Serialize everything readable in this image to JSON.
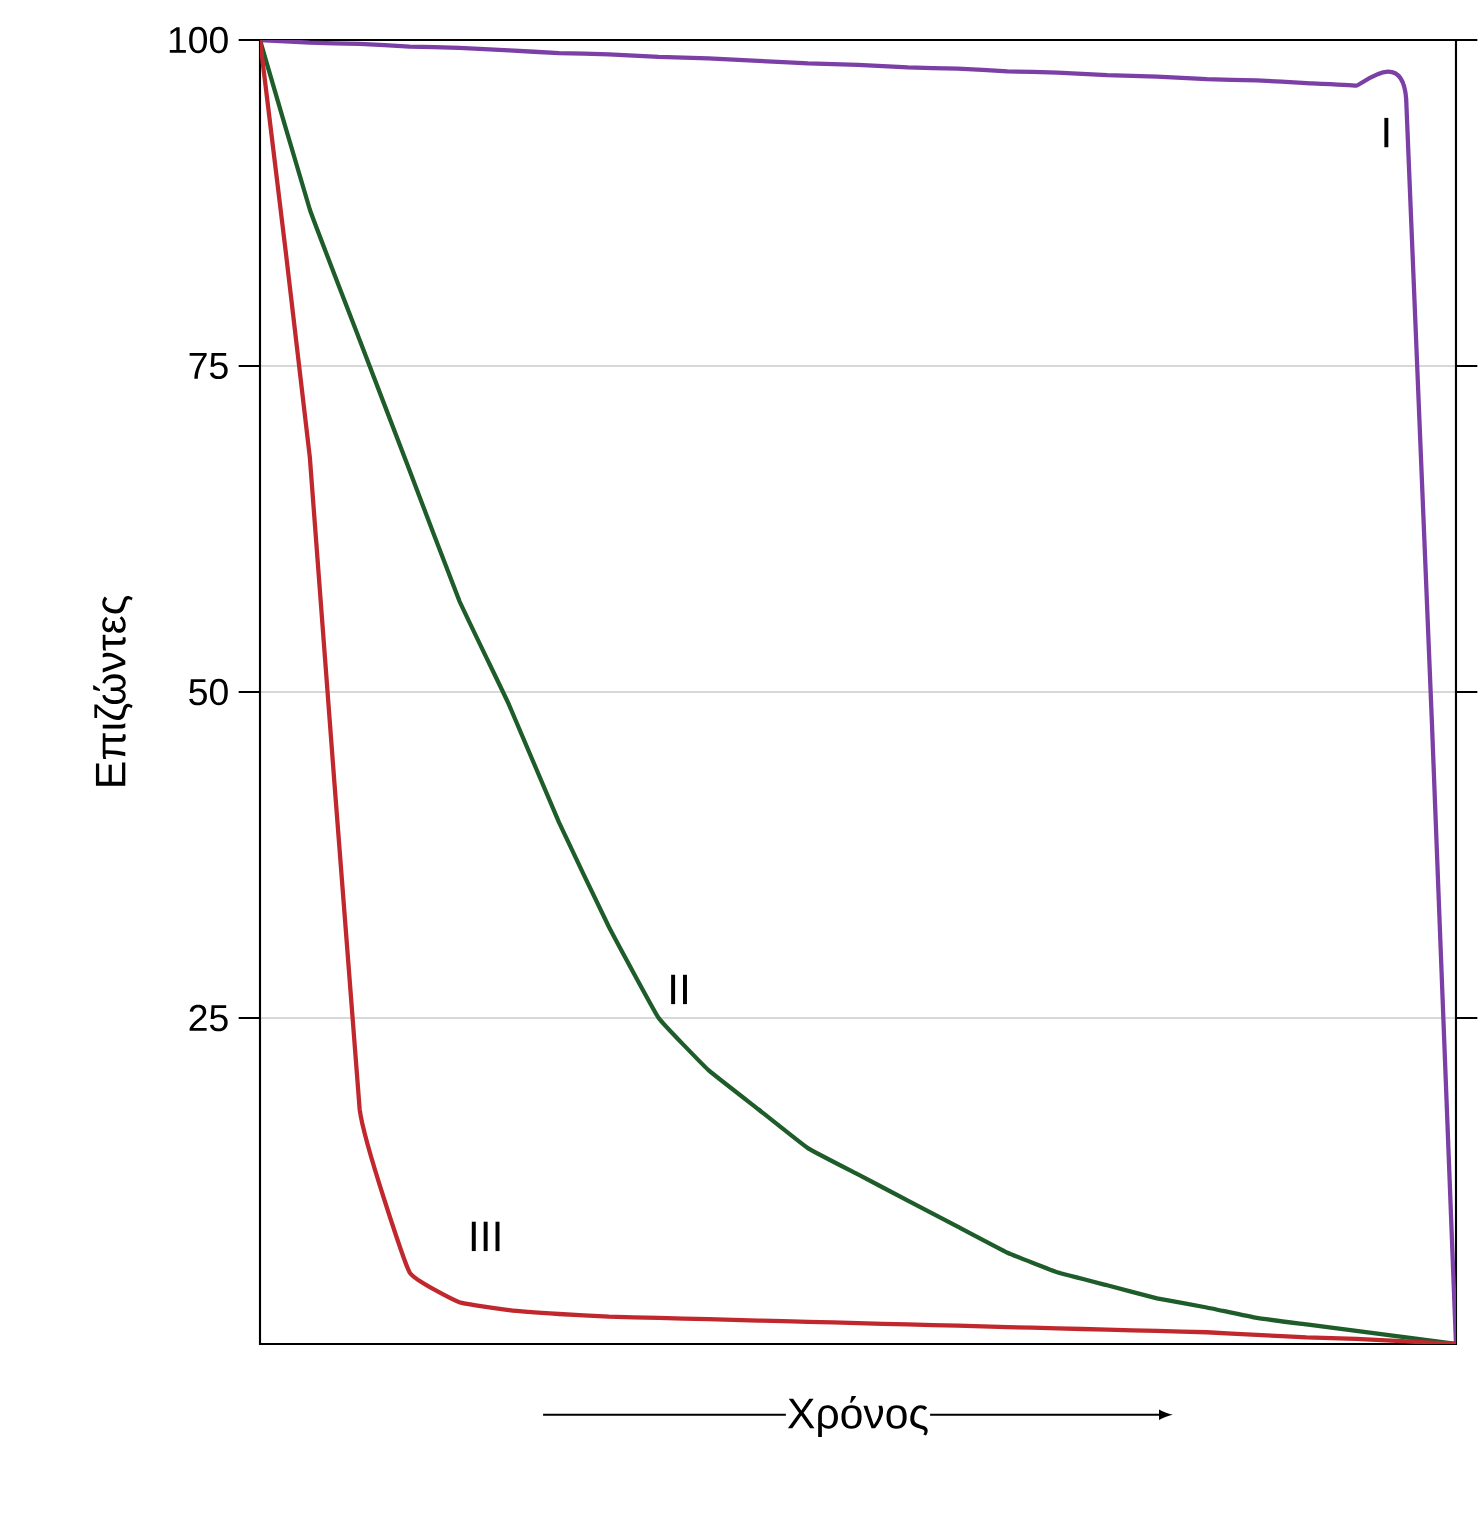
{
  "chart_data": {
    "type": "line",
    "xlabel": "Χρόνος",
    "ylabel": "Επιζώντες",
    "categories": [
      null,
      null,
      null,
      null,
      null,
      null,
      null,
      null,
      null,
      null,
      null,
      null,
      null,
      null,
      null,
      null,
      null,
      null,
      null,
      null,
      null,
      null,
      null,
      null,
      null
    ],
    "series": [
      {
        "name": "I",
        "color": "#7b3fa6",
        "values": [
          100,
          99.8,
          99.7,
          99.5,
          99.4,
          99.2,
          99,
          98.9,
          98.7,
          98.6,
          98.4,
          98.2,
          98.1,
          97.9,
          97.8,
          97.6,
          97.5,
          97.3,
          97.2,
          97,
          96.9,
          96.7,
          96.5,
          95.5,
          0
        ]
      },
      {
        "name": "II",
        "color": "#1e5c2a",
        "values": [
          100,
          87,
          77,
          67,
          57,
          49,
          40,
          32,
          25,
          21,
          18,
          15,
          13,
          11,
          9,
          7,
          5.5,
          4.5,
          3.5,
          2.8,
          2,
          1.5,
          1,
          0.5,
          0
        ]
      },
      {
        "name": "III",
        "color": "#c0282d",
        "values": [
          100,
          68,
          18,
          5.5,
          3.2,
          2.6,
          2.3,
          2.1,
          2,
          1.9,
          1.8,
          1.7,
          1.6,
          1.5,
          1.4,
          1.3,
          1.2,
          1.1,
          1,
          0.9,
          0.7,
          0.5,
          0.4,
          0.2,
          0
        ]
      }
    ],
    "ylim": [
      0,
      100
    ],
    "yticks": [
      25,
      50,
      75,
      100
    ],
    "grid": "y",
    "tick_labels": "y"
  }
}
